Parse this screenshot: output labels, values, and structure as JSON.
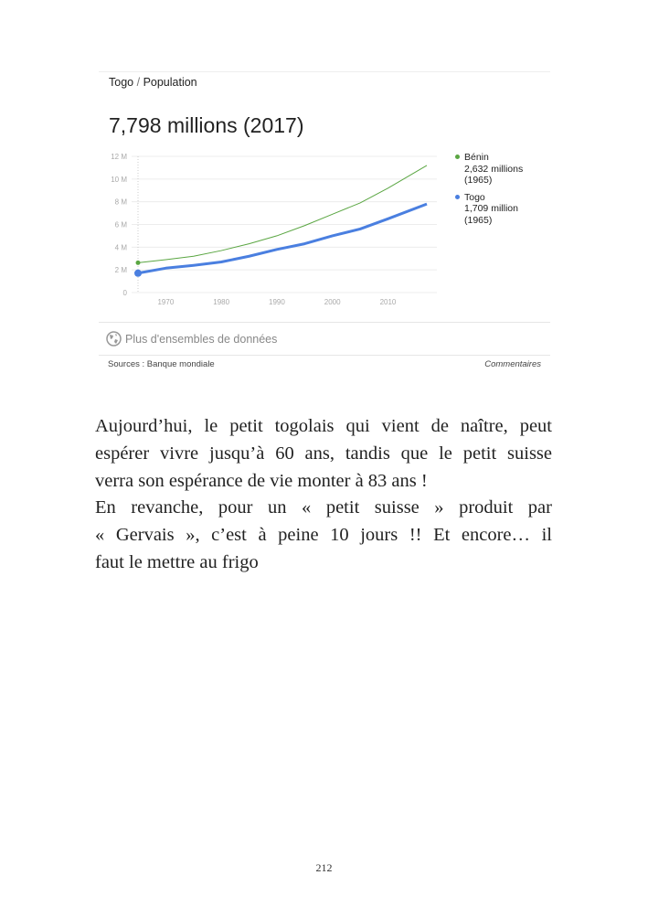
{
  "card": {
    "breadcrumb": {
      "country": "Togo",
      "separator": "/",
      "topic": "Population"
    },
    "headline": "7,798 millions (2017)",
    "more_datasets": "Plus d'ensembles de données",
    "sources": "Sources : Banque mondiale",
    "feedback": "Commentaires",
    "legend": [
      {
        "name": "Bénin",
        "value": "2,632 millions",
        "year": "(1965)"
      },
      {
        "name": "Togo",
        "value": "1,709 million",
        "year": "(1965)"
      }
    ]
  },
  "chart_data": {
    "type": "line",
    "title": "",
    "xlabel": "",
    "ylabel": "",
    "xlim": [
      1965,
      2017
    ],
    "ylim": [
      0,
      12
    ],
    "x_ticks": [
      1970,
      1980,
      1990,
      2000,
      2010
    ],
    "y_ticks": [
      0,
      2,
      4,
      6,
      8,
      10,
      12
    ],
    "y_tick_labels": [
      "0",
      "2 M",
      "4 M",
      "6 M",
      "8 M",
      "10 M",
      "12 M"
    ],
    "grid": true,
    "legend_position": "right",
    "x": [
      1965,
      1970,
      1975,
      1980,
      1985,
      1990,
      1995,
      2000,
      2005,
      2010,
      2017
    ],
    "series": [
      {
        "name": "Bénin",
        "color": "#5aa642",
        "values": [
          2.63,
          2.9,
          3.2,
          3.7,
          4.3,
          5.0,
          5.9,
          6.9,
          7.9,
          9.2,
          11.2
        ]
      },
      {
        "name": "Togo",
        "color": "#4a7fe0",
        "values": [
          1.71,
          2.15,
          2.4,
          2.7,
          3.2,
          3.8,
          4.3,
          5.0,
          5.6,
          6.5,
          7.8
        ]
      }
    ]
  },
  "body": {
    "lines": [
      "Aujourd’hui, le petit togolais qui vient de naître, peut",
      "espérer vivre jusqu’à 60 ans, tandis que le petit suisse",
      "verra son espérance de vie monter à 83 ans !",
      "En revanche, pour un « petit suisse » produit par",
      "« Gervais », c’est à peine 10 jours !! Et encore… il",
      "faut le mettre au frigo"
    ]
  },
  "page_number": "212"
}
